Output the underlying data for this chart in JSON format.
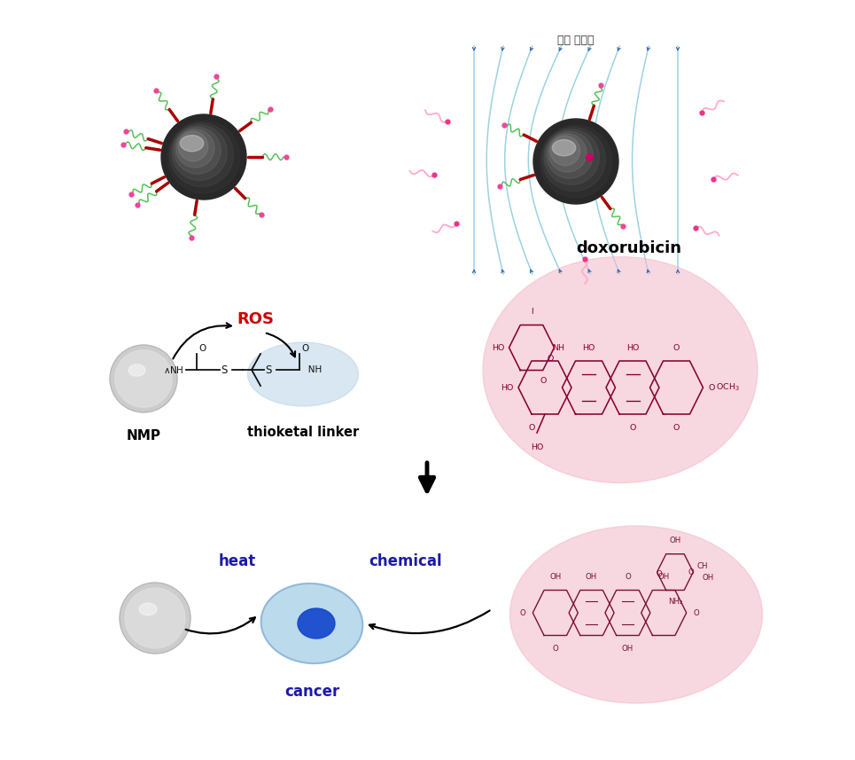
{
  "bg_color": "#ffffff",
  "amf_label": "교번 자기장",
  "ros_label": "ROS",
  "ros_color": "#cc0000",
  "nmp_label": "NMP",
  "thioketal_label": "thioketal linker",
  "doxorubicin_label": "doxorubicin",
  "heat_label": "heat",
  "chemical_label": "chemical",
  "cancer_label": "cancer",
  "heat_color": "#1a1aaa",
  "chemical_color": "#1a1aaa",
  "cancer_color": "#1a1aaa",
  "pink_color": "#f4b8c8",
  "pink_alpha": 0.55,
  "blue_oval_color": "#b8d4e8",
  "blue_oval_alpha": 0.55,
  "field_line_color": "#88ccdd",
  "field_arrow_color": "#3366bb",
  "mol_color": "#800020",
  "mol_color2": "#7a2050"
}
